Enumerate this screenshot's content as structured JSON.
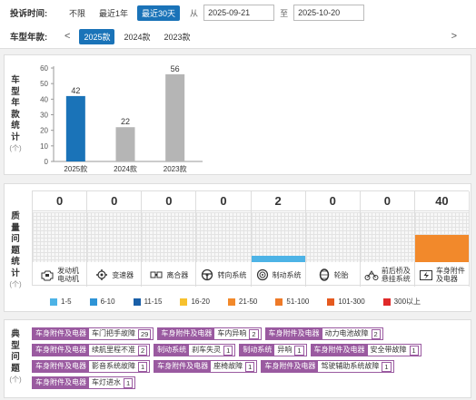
{
  "filter": {
    "time_label": "投诉时间:",
    "time_options": [
      "不限",
      "最近1年",
      "最近30天"
    ],
    "time_active": 2,
    "from_label": "从",
    "date_from": "2025-09-21",
    "to_label": "至",
    "date_to": "2025-10-20",
    "year_label": "车型年款:",
    "year_options": [
      "2025款",
      "2024款",
      "2023款"
    ],
    "year_active": 0,
    "prev_glyph": "<",
    "next_glyph": ">"
  },
  "year_panel": {
    "vertical_label": [
      "车",
      "型",
      "年",
      "款",
      "统",
      "计"
    ],
    "unit": "(个)"
  },
  "chart_data": {
    "type": "bar",
    "categories": [
      "2025款",
      "2024款",
      "2023款"
    ],
    "values": [
      42,
      22,
      56
    ],
    "ylim": [
      0,
      60
    ],
    "yticks": [
      0,
      10,
      20,
      30,
      40,
      50,
      60
    ],
    "colors": [
      "#1a73b8",
      "#b5b5b5",
      "#b5b5b5"
    ],
    "title": "",
    "xlabel": "",
    "ylabel": "车型年款统计(个)"
  },
  "quality_panel": {
    "vertical_label": [
      "质",
      "量",
      "问",
      "题",
      "统",
      "计"
    ],
    "unit": "(个)",
    "columns": [
      {
        "name": [
          "发动机",
          "电动机"
        ],
        "value": "0",
        "fill": 0,
        "color": "#4db3e6",
        "icon": "engine-icon"
      },
      {
        "name": [
          "变速器"
        ],
        "value": "0",
        "fill": 0,
        "color": "#4db3e6",
        "icon": "gearbox-icon"
      },
      {
        "name": [
          "离合器"
        ],
        "value": "0",
        "fill": 0,
        "color": "#4db3e6",
        "icon": "clutch-icon"
      },
      {
        "name": [
          "转向系统"
        ],
        "value": "0",
        "fill": 0,
        "color": "#4db3e6",
        "icon": "steering-icon"
      },
      {
        "name": [
          "制动系统"
        ],
        "value": "2",
        "fill": 0.12,
        "color": "#4db3e6",
        "icon": "brake-icon"
      },
      {
        "name": [
          "轮胎"
        ],
        "value": "0",
        "fill": 0,
        "color": "#4db3e6",
        "icon": "tire-icon"
      },
      {
        "name": [
          "前后桥及",
          "悬挂系统"
        ],
        "value": "0",
        "fill": 0,
        "color": "#4db3e6",
        "icon": "suspension-icon"
      },
      {
        "name": [
          "车身附件",
          "及电器"
        ],
        "value": "40",
        "fill": 0.55,
        "color": "#f2892b",
        "icon": "body-electrical-icon"
      }
    ],
    "legend": [
      {
        "label": "1-5",
        "color": "#4db3e6"
      },
      {
        "label": "6-10",
        "color": "#2e94d6"
      },
      {
        "label": "11-15",
        "color": "#1a5fa8"
      },
      {
        "label": "16-20",
        "color": "#f7c12e"
      },
      {
        "label": "21-50",
        "color": "#f2892b"
      },
      {
        "label": "51-100",
        "color": "#ee7a28"
      },
      {
        "label": "101-300",
        "color": "#e55a1f"
      },
      {
        "label": "300以上",
        "color": "#e02a2a"
      }
    ]
  },
  "issues_panel": {
    "vertical_label": [
      "典",
      "型",
      "问",
      "题"
    ],
    "unit": "(个)",
    "rows": [
      [
        {
          "category": "车身附件及电器",
          "name": "车门把手故障",
          "count": "29"
        },
        {
          "category": "车身附件及电器",
          "name": "车内异响",
          "count": "2"
        },
        {
          "category": "车身附件及电器",
          "name": "动力电池故障",
          "count": "2"
        }
      ],
      [
        {
          "category": "车身附件及电器",
          "name": "续航里程不准",
          "count": "2"
        },
        {
          "category": "制动系统",
          "name": "刹车失灵",
          "count": "1"
        },
        {
          "category": "制动系统",
          "name": "异响",
          "count": "1"
        },
        {
          "category": "车身附件及电器",
          "name": "安全带故障",
          "count": "1"
        }
      ],
      [
        {
          "category": "车身附件及电器",
          "name": "影音系统故障",
          "count": "1"
        },
        {
          "category": "车身附件及电器",
          "name": "座椅故障",
          "count": "1"
        },
        {
          "category": "车身附件及电器",
          "name": "驾驶辅助系统故障",
          "count": "1"
        }
      ],
      [
        {
          "category": "车身附件及电器",
          "name": "车灯进水",
          "count": "1"
        }
      ]
    ]
  }
}
